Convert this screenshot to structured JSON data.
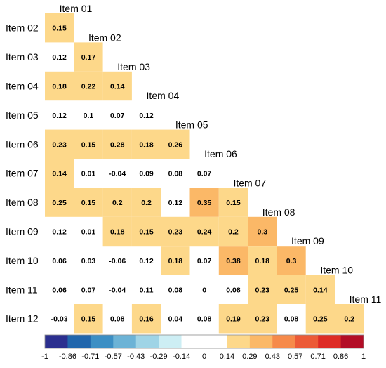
{
  "chart_data": {
    "type": "heatmap",
    "title": "",
    "row_labels": [
      "Item 02",
      "Item 03",
      "Item 04",
      "Item 05",
      "Item 06",
      "Item 07",
      "Item 08",
      "Item 09",
      "Item 10",
      "Item 11",
      "Item 12"
    ],
    "column_labels": [
      "Item 01",
      "Item 02",
      "Item 03",
      "Item 04",
      "Item 05",
      "Item 06",
      "Item 07",
      "Item 08",
      "Item 09",
      "Item 10",
      "Item 11"
    ],
    "values": [
      [
        "0.15"
      ],
      [
        "0.12",
        "0.17"
      ],
      [
        "0.18",
        "0.22",
        "0.14"
      ],
      [
        "0.12",
        "0.1",
        "0.07",
        "0.12"
      ],
      [
        "0.23",
        "0.15",
        "0.28",
        "0.18",
        "0.26"
      ],
      [
        "0.14",
        "0.01",
        "-0.04",
        "0.09",
        "0.08",
        "0.07"
      ],
      [
        "0.25",
        "0.15",
        "0.2",
        "0.2",
        "0.12",
        "0.35",
        "0.15"
      ],
      [
        "0.12",
        "0.01",
        "0.18",
        "0.15",
        "0.23",
        "0.24",
        "0.2",
        "0.3"
      ],
      [
        "0.06",
        "0.03",
        "-0.06",
        "0.12",
        "0.18",
        "0.07",
        "0.38",
        "0.18",
        "0.3"
      ],
      [
        "0.06",
        "0.07",
        "-0.04",
        "0.11",
        "0.08",
        "0",
        "0.08",
        "0.23",
        "0.25",
        "0.14"
      ],
      [
        "-0.03",
        "0.15",
        "0.08",
        "0.16",
        "0.04",
        "0.08",
        "0.19",
        "0.23",
        "0.08",
        "0.25",
        "0.2"
      ]
    ],
    "color_scale": {
      "breaks": [
        -1,
        -0.86,
        -0.71,
        -0.57,
        -0.43,
        -0.29,
        -0.14,
        0,
        0.14,
        0.29,
        0.43,
        0.57,
        0.71,
        0.86,
        1
      ],
      "tick_labels": [
        "-1",
        "-0.86",
        "-0.71",
        "-0.57",
        "-0.43",
        "-0.29",
        "-0.14",
        "0",
        "0.14",
        "0.29",
        "0.43",
        "0.57",
        "0.71",
        "0.86",
        "1"
      ],
      "colors": [
        "#2b2f8f",
        "#2166ac",
        "#3c8fc4",
        "#6cb3d6",
        "#9fd4e6",
        "#cdeef4",
        "#ffffff",
        "#ffffff",
        "#fdd88a",
        "#fbb867",
        "#f68a4a",
        "#ec5a37",
        "#de2b25",
        "#b30d26"
      ],
      "legend_position": "bottom"
    }
  }
}
